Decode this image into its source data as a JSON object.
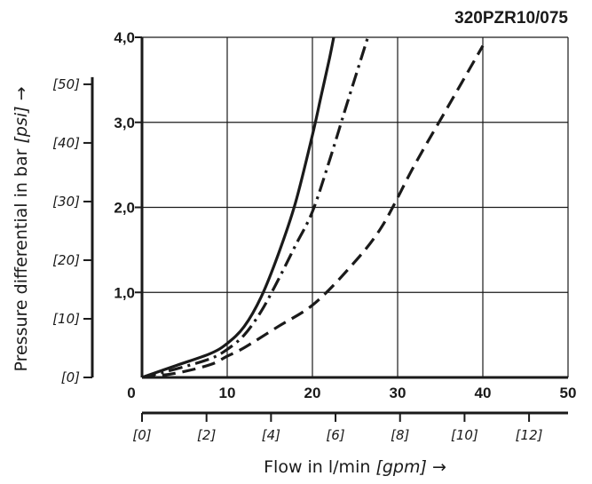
{
  "chart_data": {
    "type": "line",
    "title": "320PZR10/075",
    "xlabel": {
      "text": "Flow in l/min",
      "unit": "[gpm]",
      "arrow": "→"
    },
    "ylabel": {
      "text": "Pressure differential in bar",
      "unit": "[psi]",
      "arrow": "→"
    },
    "xlim": [
      0,
      50
    ],
    "ylim": [
      0,
      4.0
    ],
    "x_ticks": [
      "0",
      "10",
      "20",
      "30",
      "40",
      "50"
    ],
    "x_ticks_values": [
      0,
      10,
      20,
      30,
      40,
      50
    ],
    "y_ticks": [
      "1,0",
      "2,0",
      "3,0",
      "4,0"
    ],
    "y_ticks_values": [
      1,
      2,
      3,
      4
    ],
    "x_ticks_secondary": [
      "[0]",
      "[2]",
      "[4]",
      "[6]",
      "[8]",
      "[10]",
      "[12]"
    ],
    "x_ticks_secondary_values": [
      0,
      2,
      4,
      6,
      8,
      10,
      12
    ],
    "y_ticks_secondary": [
      "[0]",
      "[10]",
      "[20]",
      "[30]",
      "[40]",
      "[50]"
    ],
    "y_ticks_secondary_values": [
      0,
      10,
      20,
      30,
      40,
      50
    ],
    "grid": true,
    "series": [
      {
        "style": "solid",
        "x": [
          0,
          4,
          8,
          10,
          12,
          14,
          16,
          18,
          20,
          21,
          22,
          22.5
        ],
        "y": [
          0,
          0.14,
          0.28,
          0.4,
          0.6,
          0.95,
          1.45,
          2.05,
          2.85,
          3.3,
          3.75,
          4.0
        ]
      },
      {
        "style": "dash-dot",
        "x": [
          0,
          4,
          8,
          10,
          12,
          14,
          16,
          18,
          20,
          22,
          24,
          26.5
        ],
        "y": [
          0,
          0.1,
          0.22,
          0.33,
          0.5,
          0.78,
          1.15,
          1.55,
          1.95,
          2.55,
          3.2,
          4.0
        ]
      },
      {
        "style": "dashed",
        "x": [
          0,
          4,
          8,
          10,
          12,
          16,
          20,
          24,
          28,
          32,
          36,
          40
        ],
        "y": [
          0,
          0.05,
          0.15,
          0.25,
          0.35,
          0.6,
          0.85,
          1.25,
          1.75,
          2.5,
          3.2,
          3.9
        ]
      }
    ]
  }
}
